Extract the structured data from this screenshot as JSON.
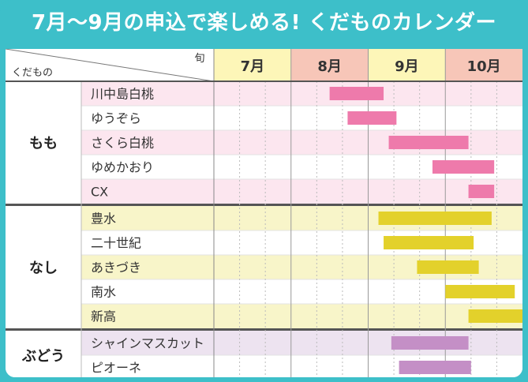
{
  "title": "7月〜9月の申込で楽しめる! くだものカレンダー",
  "chart_data": {
    "type": "gantt",
    "corner": {
      "top_label": "旬",
      "bottom_label": "くだもの"
    },
    "months": [
      {
        "label": "7月",
        "header_color": "#fdf6b8"
      },
      {
        "label": "8月",
        "header_color": "#f7c6b8"
      },
      {
        "label": "9月",
        "header_color": "#fdf6b8"
      },
      {
        "label": "10月",
        "header_color": "#f7c6b8"
      }
    ],
    "periods_per_month": 3,
    "groups": [
      {
        "name": "もも",
        "bar_color": "#ee7aab",
        "stripe_color": "#fce6ef",
        "items": [
          {
            "name": "川中島白桃",
            "start": 4.5,
            "end": 6.6
          },
          {
            "name": "ゆうぞら",
            "start": 5.2,
            "end": 7.1
          },
          {
            "name": "さくら白桃",
            "start": 6.8,
            "end": 9.9
          },
          {
            "name": "ゆめかおり",
            "start": 8.5,
            "end": 10.9
          },
          {
            "name": "CX",
            "start": 9.9,
            "end": 10.9
          }
        ]
      },
      {
        "name": "なし",
        "bar_color": "#e3d12b",
        "stripe_color": "#f8f5c9",
        "items": [
          {
            "name": "豊水",
            "start": 6.4,
            "end": 10.8
          },
          {
            "name": "二十世紀",
            "start": 6.6,
            "end": 10.1
          },
          {
            "name": "あきづき",
            "start": 7.9,
            "end": 10.3
          },
          {
            "name": "南水",
            "start": 9.0,
            "end": 11.7
          },
          {
            "name": "新高",
            "start": 9.9,
            "end": 12.0
          }
        ]
      },
      {
        "name": "ぶどう",
        "bar_color": "#c48fc6",
        "stripe_color": "#ede3f0",
        "items": [
          {
            "name": "シャインマスカット",
            "start": 6.9,
            "end": 9.9
          },
          {
            "name": "ピオーネ",
            "start": 7.2,
            "end": 10.0
          }
        ]
      }
    ]
  }
}
